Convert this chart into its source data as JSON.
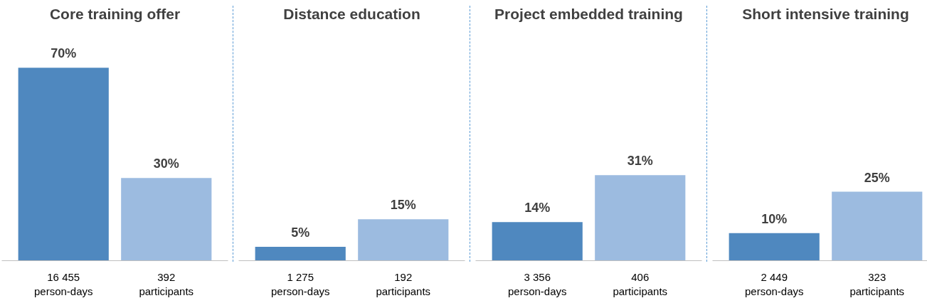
{
  "chart_data": [
    {
      "type": "bar",
      "title": "Core training offer",
      "categories": [
        "16 455\nperson-days",
        "392\nparticipants"
      ],
      "values": [
        70,
        30
      ],
      "value_labels": [
        "70%",
        "30%"
      ],
      "colors": [
        "#4f88bf",
        "#9cbbe0"
      ],
      "tick_labels": "x",
      "grid": false
    },
    {
      "type": "bar",
      "title": "Distance education",
      "categories": [
        "1 275\nperson-days",
        "192\nparticipants"
      ],
      "values": [
        5,
        15
      ],
      "value_labels": [
        "5%",
        "15%"
      ],
      "colors": [
        "#4f88bf",
        "#9cbbe0"
      ],
      "tick_labels": "x",
      "grid": false
    },
    {
      "type": "bar",
      "title": "Project embedded training",
      "categories": [
        "3 356\nperson-days",
        "406\nparticipants"
      ],
      "values": [
        14,
        31
      ],
      "value_labels": [
        "14%",
        "31%"
      ],
      "colors": [
        "#4f88bf",
        "#9cbbe0"
      ],
      "tick_labels": "x",
      "grid": false
    },
    {
      "type": "bar",
      "title": "Short intensive training",
      "categories": [
        "2 449\nperson-days",
        "323\nparticipants"
      ],
      "values": [
        10,
        25
      ],
      "value_labels": [
        "10%",
        "25%"
      ],
      "colors": [
        "#4f88bf",
        "#9cbbe0"
      ],
      "tick_labels": "x",
      "grid": false
    }
  ]
}
